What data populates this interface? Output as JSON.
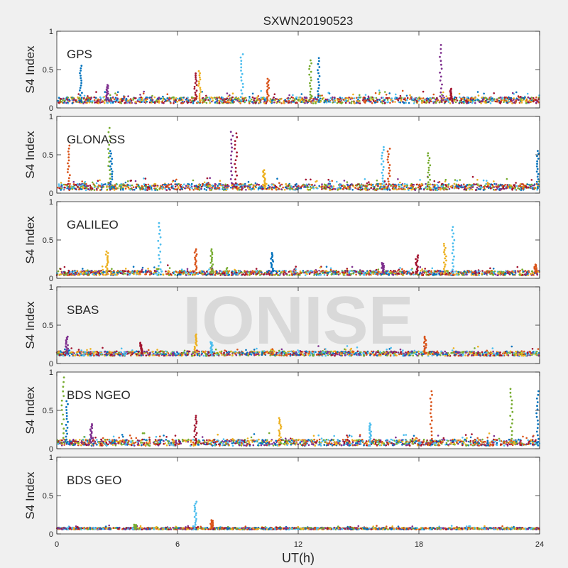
{
  "chart_data": {
    "type": "scatter",
    "title": "SXWN20190523",
    "xlabel": "UT(h)",
    "ylabel": "S4 Index",
    "xlim": [
      0,
      24
    ],
    "ylim": [
      0,
      1
    ],
    "xticks": [
      0,
      6,
      12,
      18,
      24
    ],
    "yticks": [
      0,
      0.5,
      1
    ],
    "ytick_labels": [
      "0",
      "0.5",
      "1"
    ],
    "watermark": "IONISE",
    "grid": false,
    "palette": [
      "#0072bd",
      "#d95319",
      "#edb120",
      "#7e2f8e",
      "#77ac30",
      "#4dbeee",
      "#a2142f"
    ],
    "panels": [
      {
        "label": "GPS",
        "base": 0.1,
        "spread": 0.04,
        "spikes": [
          {
            "x": 1.2,
            "y": 0.55
          },
          {
            "x": 2.5,
            "y": 0.3
          },
          {
            "x": 6.9,
            "y": 0.45
          },
          {
            "x": 7.1,
            "y": 0.48
          },
          {
            "x": 9.2,
            "y": 0.7
          },
          {
            "x": 10.5,
            "y": 0.38
          },
          {
            "x": 12.6,
            "y": 0.62
          },
          {
            "x": 13.0,
            "y": 0.65
          },
          {
            "x": 19.1,
            "y": 0.82
          },
          {
            "x": 19.6,
            "y": 0.25
          }
        ]
      },
      {
        "label": "GLONASS",
        "base": 0.08,
        "spread": 0.04,
        "spikes": [
          {
            "x": 0.6,
            "y": 0.62
          },
          {
            "x": 2.6,
            "y": 0.85
          },
          {
            "x": 2.7,
            "y": 0.55
          },
          {
            "x": 8.7,
            "y": 0.8
          },
          {
            "x": 8.9,
            "y": 0.78
          },
          {
            "x": 10.3,
            "y": 0.3
          },
          {
            "x": 16.2,
            "y": 0.6
          },
          {
            "x": 16.5,
            "y": 0.58
          },
          {
            "x": 18.5,
            "y": 0.52
          },
          {
            "x": 23.9,
            "y": 0.55
          }
        ]
      },
      {
        "label": "GALILEO",
        "base": 0.07,
        "spread": 0.03,
        "spikes": [
          {
            "x": 2.5,
            "y": 0.35
          },
          {
            "x": 5.1,
            "y": 0.72
          },
          {
            "x": 6.9,
            "y": 0.38
          },
          {
            "x": 7.7,
            "y": 0.38
          },
          {
            "x": 10.7,
            "y": 0.33
          },
          {
            "x": 16.2,
            "y": 0.2
          },
          {
            "x": 17.9,
            "y": 0.3
          },
          {
            "x": 19.3,
            "y": 0.45
          },
          {
            "x": 19.7,
            "y": 0.67
          },
          {
            "x": 23.8,
            "y": 0.18
          }
        ]
      },
      {
        "label": "SBAS",
        "base": 0.13,
        "spread": 0.03,
        "spikes": [
          {
            "x": 0.5,
            "y": 0.35
          },
          {
            "x": 4.2,
            "y": 0.27
          },
          {
            "x": 6.9,
            "y": 0.38
          },
          {
            "x": 7.7,
            "y": 0.28
          },
          {
            "x": 18.3,
            "y": 0.35
          }
        ]
      },
      {
        "label": "BDS NGEO",
        "base": 0.08,
        "spread": 0.04,
        "spikes": [
          {
            "x": 0.3,
            "y": 0.93
          },
          {
            "x": 0.5,
            "y": 0.62
          },
          {
            "x": 1.7,
            "y": 0.32
          },
          {
            "x": 6.9,
            "y": 0.43
          },
          {
            "x": 11.1,
            "y": 0.4
          },
          {
            "x": 15.6,
            "y": 0.33
          },
          {
            "x": 18.6,
            "y": 0.75
          },
          {
            "x": 22.6,
            "y": 0.78
          },
          {
            "x": 23.9,
            "y": 0.75
          }
        ]
      },
      {
        "label": "BDS GEO",
        "base": 0.07,
        "spread": 0.012,
        "spikes": [
          {
            "x": 6.9,
            "y": 0.42
          },
          {
            "x": 7.7,
            "y": 0.18
          },
          {
            "x": 3.9,
            "y": 0.12
          }
        ]
      }
    ]
  }
}
